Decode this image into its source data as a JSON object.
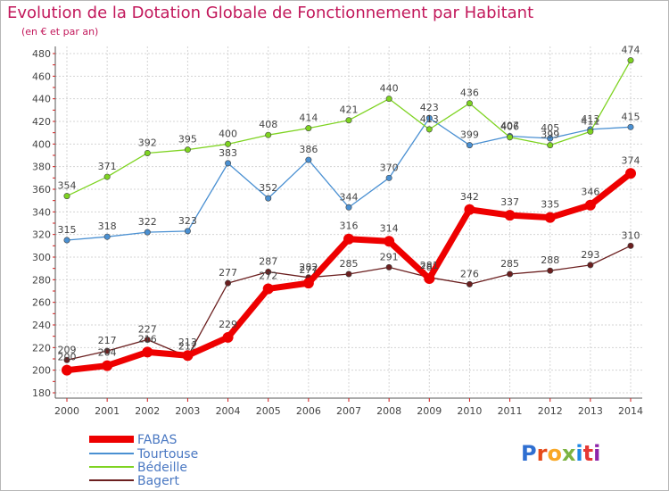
{
  "title": "Evolution de la Dotation Globale de Fonctionnement par Habitant",
  "subtitle": "(en € et par an)",
  "logo": "Proxiti",
  "chart_data": {
    "type": "line",
    "x": [
      "2000",
      "2001",
      "2002",
      "2003",
      "2004",
      "2005",
      "2006",
      "2007",
      "2008",
      "2009",
      "2010",
      "2011",
      "2012",
      "2013",
      "2014"
    ],
    "ylim": [
      180,
      480
    ],
    "yticks": [
      180,
      200,
      220,
      240,
      260,
      280,
      300,
      320,
      340,
      360,
      380,
      400,
      420,
      440,
      460,
      480
    ],
    "grid": true,
    "legend_position": "bottom-left",
    "series": [
      {
        "name": "FABAS",
        "color": "#ee0000",
        "values": [
          200,
          204,
          216,
          213,
          229,
          272,
          277,
          316,
          314,
          281,
          342,
          337,
          335,
          346,
          374
        ]
      },
      {
        "name": "Tourtouse",
        "color": "#4a90d2",
        "values": [
          315,
          318,
          322,
          323,
          383,
          352,
          386,
          344,
          370,
          423,
          399,
          407,
          405,
          413,
          415
        ]
      },
      {
        "name": "Bédeille",
        "color": "#7ed321",
        "values": [
          354,
          371,
          392,
          395,
          400,
          408,
          414,
          421,
          440,
          413,
          436,
          406,
          399,
          411,
          474
        ]
      },
      {
        "name": "Bagert",
        "color": "#6b1f1f",
        "values": [
          209,
          217,
          227,
          212,
          277,
          287,
          282,
          285,
          291,
          282,
          276,
          285,
          288,
          293,
          310
        ]
      }
    ]
  }
}
